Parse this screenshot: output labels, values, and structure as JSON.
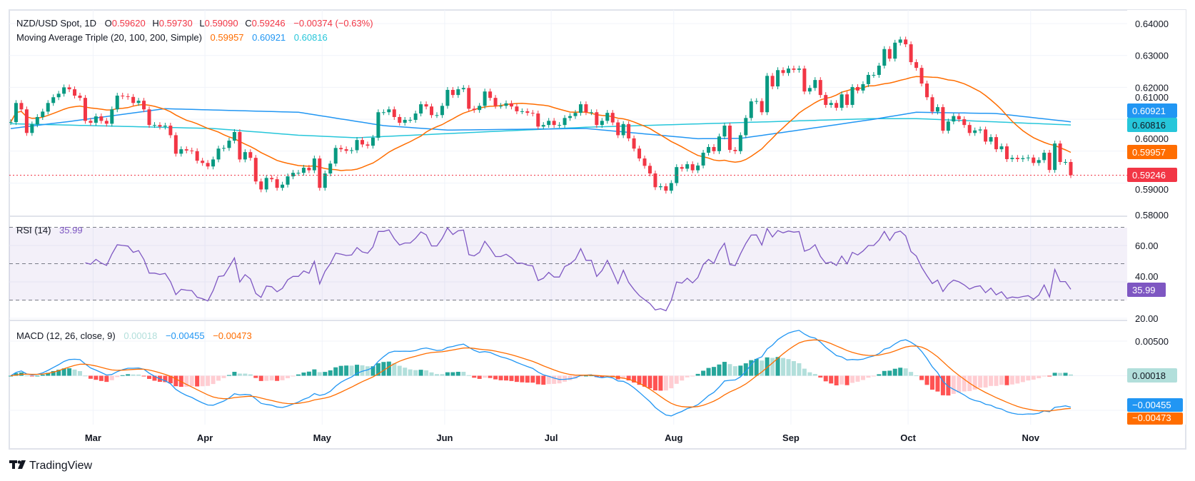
{
  "header": {
    "symbol": "NZD/USD Spot, 1D",
    "o_label": "O",
    "o_value": "0.59620",
    "h_label": "H",
    "h_value": "0.59730",
    "l_label": "L",
    "l_value": "0.59090",
    "c_label": "C",
    "c_value": "0.59246",
    "change": "−0.00374 (−0.63%)",
    "ma_title": "Moving Average Triple (20, 100, 200, Simple)",
    "ma20_value": "0.59957",
    "ma100_value": "0.60921",
    "ma200_value": "0.60816"
  },
  "rsi_header": {
    "title": "RSI (14)",
    "value": "35.99"
  },
  "macd_header": {
    "title": "MACD (12, 26, close, 9)",
    "hist_value": "0.00018",
    "macd_value": "−0.00455",
    "signal_value": "−0.00473"
  },
  "price_axis": {
    "ticks": [
      "0.64000",
      "0.63000",
      "0.62000",
      "0.61000",
      "0.60000",
      "0.59000",
      "0.58000"
    ]
  },
  "rsi_axis": {
    "ticks": [
      "60.00",
      "40.00",
      "20.00"
    ]
  },
  "macd_axis": {
    "ticks": [
      "0.00500"
    ]
  },
  "time_axis": {
    "labels": [
      "Mar",
      "Apr",
      "May",
      "Jun",
      "Jul",
      "Aug",
      "Sep",
      "Oct",
      "Nov"
    ]
  },
  "badges": {
    "ma100": "0.60921",
    "ma200": "0.60816",
    "ma20": "0.59957",
    "last": "0.59246",
    "rsi": "35.99",
    "hist": "0.00018",
    "macd": "−0.00455",
    "signal": "−0.00473"
  },
  "brand": "TradingView",
  "colors": {
    "up": "#089981",
    "down": "#f23645",
    "ma20": "#ff6d00",
    "ma100": "#2196f3",
    "ma200": "#26c6da",
    "rsi": "#7e57c2",
    "macd": "#2196f3",
    "signal": "#ff6d00",
    "hist_up_strong": "#26a69a",
    "hist_up_weak": "#b2dfdb",
    "hist_down_strong": "#ff5252",
    "hist_down_weak": "#ffcdd2"
  },
  "chart_data": {
    "type": "candlestick",
    "title": "NZD/USD Spot, 1D",
    "ylim": [
      0.58,
      0.64
    ],
    "grid": true,
    "closes": [
      0.6091,
      0.6151,
      0.6131,
      0.6057,
      0.6084,
      0.6107,
      0.6124,
      0.6151,
      0.6169,
      0.618,
      0.62,
      0.6194,
      0.6174,
      0.6167,
      0.6095,
      0.6089,
      0.6109,
      0.6095,
      0.6086,
      0.6131,
      0.6174,
      0.6172,
      0.617,
      0.6151,
      0.6158,
      0.6131,
      0.6082,
      0.6082,
      0.6077,
      0.608,
      0.605,
      0.5992,
      0.6006,
      0.6002,
      0.6,
      0.597,
      0.5963,
      0.5952,
      0.5974,
      0.6008,
      0.601,
      0.6033,
      0.606,
      0.5974,
      0.5997,
      0.5979,
      0.5905,
      0.588,
      0.5916,
      0.5912,
      0.5885,
      0.5895,
      0.5921,
      0.5932,
      0.5932,
      0.5948,
      0.594,
      0.5977,
      0.5885,
      0.593,
      0.5961,
      0.601,
      0.6006,
      0.6001,
      0.6003,
      0.6035,
      0.6021,
      0.6017,
      0.6042,
      0.6122,
      0.6122,
      0.6131,
      0.6107,
      0.6089,
      0.6098,
      0.6098,
      0.6118,
      0.6147,
      0.614,
      0.6113,
      0.6113,
      0.6142,
      0.6192,
      0.6176,
      0.6194,
      0.6198,
      0.6133,
      0.6129,
      0.6142,
      0.6187,
      0.6167,
      0.6142,
      0.6142,
      0.615,
      0.614,
      0.6125,
      0.6125,
      0.612,
      0.6118,
      0.6077,
      0.6082,
      0.6095,
      0.6082,
      0.6082,
      0.6104,
      0.611,
      0.612,
      0.6147,
      0.6122,
      0.6122,
      0.6082,
      0.6095,
      0.612,
      0.609,
      0.605,
      0.6085,
      0.604,
      0.6008,
      0.5977,
      0.5954,
      0.593,
      0.5887,
      0.589,
      0.5876,
      0.59,
      0.595,
      0.5945,
      0.5959,
      0.594,
      0.5955,
      0.5995,
      0.6013,
      0.6,
      0.6046,
      0.608,
      0.6004,
      0.6,
      0.605,
      0.6104,
      0.6156,
      0.6157,
      0.6122,
      0.6236,
      0.6203,
      0.6254,
      0.6245,
      0.6259,
      0.6255,
      0.6259,
      0.6187,
      0.6198,
      0.6223,
      0.6176,
      0.6145,
      0.6151,
      0.6136,
      0.6178,
      0.6145,
      0.6201,
      0.619,
      0.621,
      0.6239,
      0.6239,
      0.6268,
      0.632,
      0.629,
      0.634,
      0.635,
      0.6335,
      0.6279,
      0.6261,
      0.6212,
      0.6169,
      0.6124,
      0.6138,
      0.6064,
      0.6093,
      0.611,
      0.61,
      0.6082,
      0.6057,
      0.6065,
      0.6068,
      0.603,
      0.6044,
      0.6006,
      0.6015,
      0.5975,
      0.5979,
      0.5975,
      0.5978,
      0.598,
      0.5963,
      0.5972,
      0.5995,
      0.5941,
      0.6024,
      0.5966,
      0.5966,
      0.59246
    ],
    "month_starts": {
      "Mar": 16,
      "Apr": 37,
      "May": 59,
      "Jun": 82,
      "Jul": 102,
      "Aug": 125,
      "Sep": 147,
      "Oct": 169,
      "Nov": 192
    },
    "ma100_samples": [
      [
        0,
        0.6071
      ],
      [
        11,
        0.6093
      ],
      [
        29,
        0.6133
      ],
      [
        54,
        0.6122
      ],
      [
        70,
        0.608
      ],
      [
        82,
        0.6066
      ],
      [
        108,
        0.6071
      ],
      [
        129,
        0.6039
      ],
      [
        137,
        0.604
      ],
      [
        148,
        0.6066
      ],
      [
        162,
        0.61
      ],
      [
        170,
        0.6122
      ],
      [
        185,
        0.6118
      ],
      [
        199,
        0.6092
      ]
    ],
    "ma200_samples": [
      [
        0,
        0.6086
      ],
      [
        38,
        0.6071
      ],
      [
        54,
        0.605
      ],
      [
        65,
        0.6042
      ],
      [
        108,
        0.6075
      ],
      [
        162,
        0.6102
      ],
      [
        170,
        0.6102
      ],
      [
        199,
        0.6082
      ]
    ],
    "last_price": 0.59246,
    "rsi": {
      "period": 14,
      "bands": [
        30,
        50,
        70
      ],
      "ylim": [
        20,
        75
      ]
    },
    "macd": {
      "fast": 12,
      "slow": 26,
      "signal": 9,
      "ylim": [
        -0.0051,
        0.0075
      ]
    }
  }
}
